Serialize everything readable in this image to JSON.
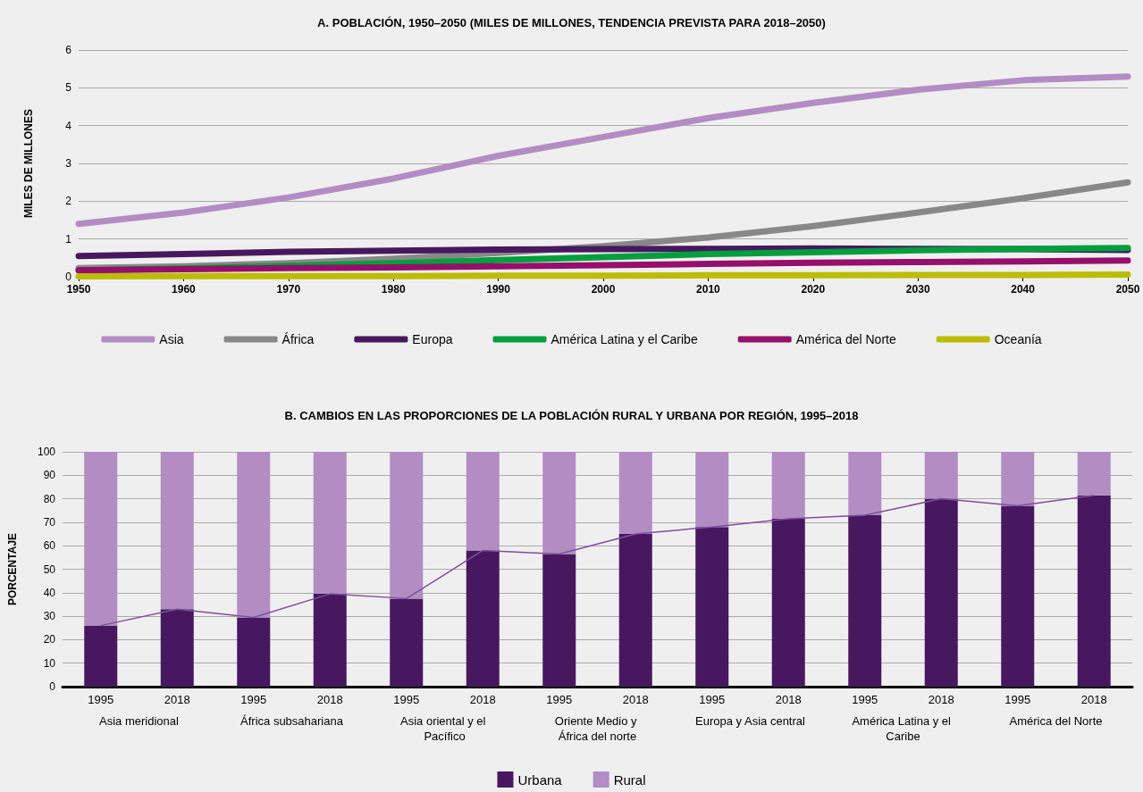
{
  "chart_data": [
    {
      "type": "line",
      "title": "A. POBLACIÓN, 1950–2050 (MILES DE MILLONES, TENDENCIA PREVISTA PARA 2018–2050)",
      "ylabel": "MILES DE MILLONES",
      "x": [
        1950,
        1960,
        1970,
        1980,
        1990,
        2000,
        2010,
        2020,
        2030,
        2040,
        2050
      ],
      "series": [
        {
          "name": "Asia",
          "color": "#b28cc3",
          "values": [
            1.4,
            1.7,
            2.1,
            2.6,
            3.2,
            3.7,
            4.2,
            4.6,
            4.95,
            5.2,
            5.3
          ]
        },
        {
          "name": "África",
          "color": "#888888",
          "values": [
            0.23,
            0.28,
            0.36,
            0.48,
            0.63,
            0.81,
            1.04,
            1.34,
            1.7,
            2.08,
            2.5
          ]
        },
        {
          "name": "Europa",
          "color": "#47185f",
          "values": [
            0.55,
            0.6,
            0.66,
            0.69,
            0.72,
            0.73,
            0.74,
            0.75,
            0.74,
            0.73,
            0.71
          ]
        },
        {
          "name": "América Latina y el Caribe",
          "color": "#009e3d",
          "values": [
            0.17,
            0.22,
            0.29,
            0.36,
            0.44,
            0.52,
            0.6,
            0.65,
            0.7,
            0.74,
            0.76
          ]
        },
        {
          "name": "América del Norte",
          "color": "#960f6b",
          "values": [
            0.17,
            0.2,
            0.23,
            0.25,
            0.28,
            0.31,
            0.34,
            0.37,
            0.39,
            0.41,
            0.43
          ]
        },
        {
          "name": "Oceanía",
          "color": "#bcbc00",
          "values": [
            0.01,
            0.02,
            0.02,
            0.02,
            0.03,
            0.03,
            0.04,
            0.04,
            0.05,
            0.05,
            0.06
          ]
        }
      ],
      "xlim": [
        1950,
        2050
      ],
      "xticks": [
        1950,
        1960,
        1970,
        1980,
        1990,
        2000,
        2010,
        2020,
        2030,
        2040,
        2050
      ],
      "ylim": [
        0,
        6
      ],
      "yticks": [
        0,
        1,
        2,
        3,
        4,
        5,
        6
      ],
      "grid": "y",
      "legend": "bottom",
      "marker": "none",
      "line_style": "solid"
    },
    {
      "type": "bar",
      "title": "B. CAMBIOS EN LAS PROPORCIONES DE LA POBLACIÓN RURAL Y URBANA POR REGIÓN, 1995–2018",
      "ylabel": "PORCENTAJE",
      "categories": [
        "1995",
        "2018",
        "1995",
        "2018",
        "1995",
        "2018",
        "1995",
        "2018",
        "1995",
        "2018",
        "1995",
        "2018",
        "1995",
        "2018"
      ],
      "stacked": true,
      "series": [
        {
          "name": "Urbana",
          "color": "#47185f",
          "values": [
            26,
            33,
            29.5,
            39.5,
            37.5,
            58,
            56.5,
            65,
            68,
            71.5,
            73,
            80,
            77,
            81.5
          ]
        },
        {
          "name": "Rural",
          "color": "#b28cc3",
          "values": [
            74,
            67,
            70.5,
            60.5,
            62.5,
            42,
            43.5,
            35,
            32,
            28.5,
            27,
            20,
            23,
            18.5
          ]
        },
        {
          "type": "line",
          "color": "#7e4f9e",
          "values": [
            26,
            33,
            29.5,
            39.5,
            37.5,
            58,
            56.5,
            65,
            68,
            71.5,
            73,
            80,
            77,
            81.5
          ]
        }
      ],
      "annotations": [
        "Asia meridional",
        "África subsahariana",
        "Asia oriental y el Pacífico",
        "Oriente Medio y África del norte",
        "Europa y Asia central",
        "América Latina y el Caribe",
        "América del Norte"
      ],
      "ylim": [
        0,
        100
      ],
      "yticks": [
        0,
        10,
        20,
        30,
        40,
        50,
        60,
        70,
        80,
        90,
        100
      ],
      "grid": "y",
      "legend": "bottom",
      "marker": "none"
    }
  ]
}
